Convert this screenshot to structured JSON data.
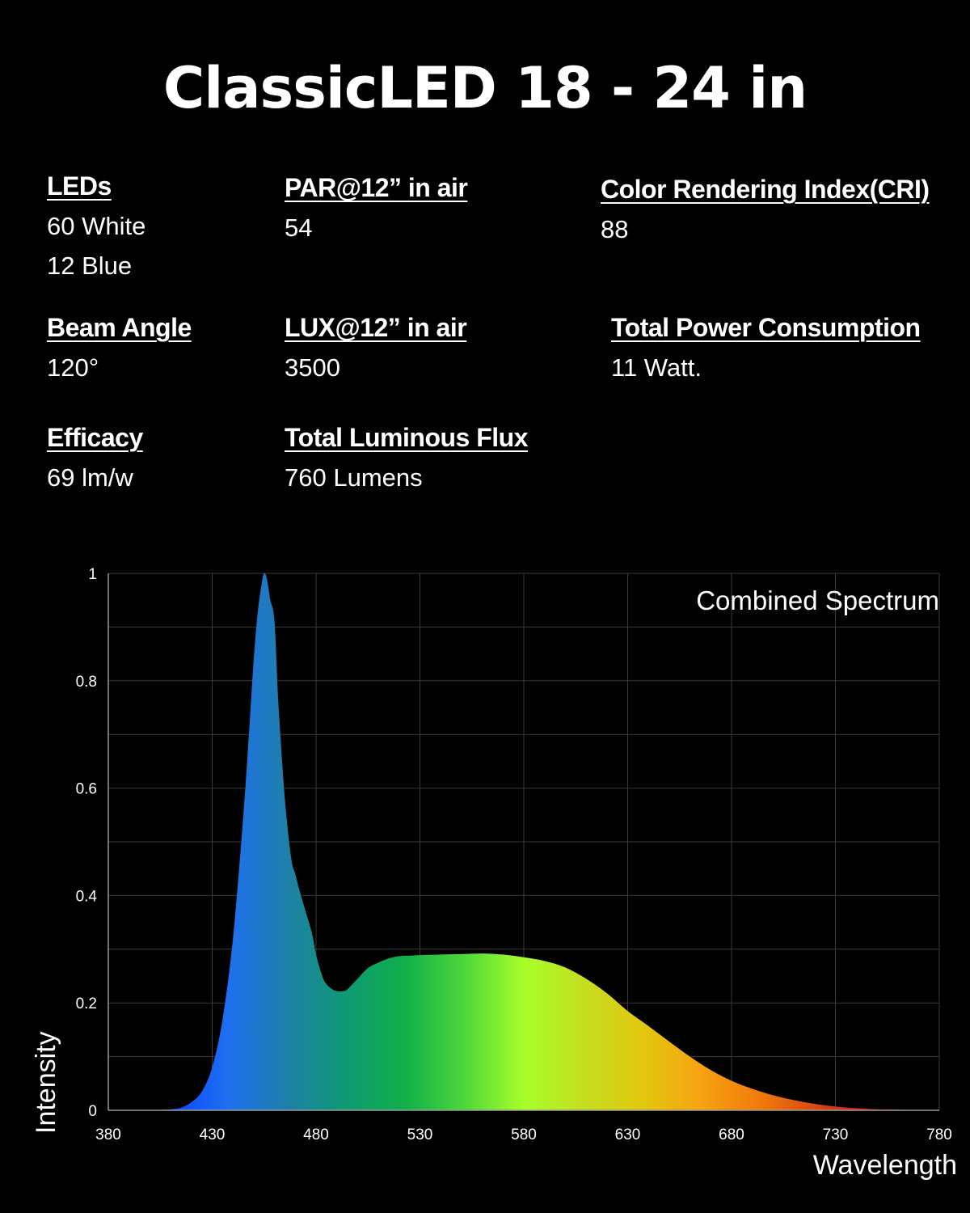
{
  "title": "ClassicLED 18 - 24 in",
  "specs": {
    "leds": {
      "label": "LEDs",
      "values": [
        "60 White",
        "12 Blue"
      ]
    },
    "par": {
      "label": "PAR@12” in air",
      "values": [
        "54"
      ]
    },
    "cri": {
      "label": "Color Rendering Index(CRI)",
      "values": [
        "88"
      ]
    },
    "beam": {
      "label": "Beam Angle",
      "values": [
        "120°"
      ]
    },
    "lux": {
      "label": "LUX@12” in air",
      "values": [
        "3500"
      ]
    },
    "power": {
      "label": "Total Power Consumption",
      "values": [
        "11 Watt."
      ]
    },
    "efficacy": {
      "label": "Efficacy",
      "values": [
        "69 lm/w"
      ]
    },
    "flux": {
      "label": "Total Luminous Flux",
      "values": [
        "760 Lumens"
      ]
    }
  },
  "chart_data": {
    "type": "area",
    "title": "",
    "annotation": "Combined Spectrum",
    "xlabel": "Wavelength",
    "ylabel": "Intensity",
    "xlim": [
      380,
      780
    ],
    "ylim": [
      0,
      1
    ],
    "x_ticks": [
      380,
      430,
      480,
      530,
      580,
      630,
      680,
      730,
      780
    ],
    "x_tick_labels": [
      "380",
      "430",
      "480",
      "530",
      "580",
      "630",
      "680",
      "730",
      "780"
    ],
    "y_ticks": [
      0,
      0.2,
      0.4,
      0.6,
      0.8,
      1
    ],
    "y_tick_labels": [
      "0",
      "0.2",
      "0.4",
      "0.6",
      "0.8",
      "1"
    ],
    "grid": true,
    "series": [
      {
        "x": [
          380,
          400,
          410,
          415,
          420,
          425,
          430,
          435,
          440,
          445,
          448,
          450,
          452,
          454,
          455,
          456,
          457,
          458,
          460,
          462,
          465,
          468,
          470,
          472,
          475,
          478,
          480,
          483,
          485,
          488,
          490,
          493,
          495,
          500,
          505,
          510,
          515,
          520,
          525,
          530,
          540,
          550,
          560,
          570,
          580,
          590,
          600,
          610,
          620,
          630,
          640,
          650,
          660,
          670,
          680,
          690,
          700,
          710,
          720,
          730,
          740,
          750,
          760,
          770,
          780
        ],
        "values": [
          0,
          0,
          0.002,
          0.005,
          0.015,
          0.035,
          0.08,
          0.17,
          0.32,
          0.55,
          0.72,
          0.84,
          0.93,
          0.985,
          1.0,
          0.995,
          0.975,
          0.95,
          0.91,
          0.75,
          0.58,
          0.47,
          0.44,
          0.41,
          0.37,
          0.33,
          0.29,
          0.25,
          0.235,
          0.225,
          0.222,
          0.222,
          0.225,
          0.245,
          0.265,
          0.275,
          0.283,
          0.287,
          0.288,
          0.289,
          0.29,
          0.291,
          0.292,
          0.29,
          0.285,
          0.278,
          0.266,
          0.245,
          0.218,
          0.185,
          0.157,
          0.128,
          0.1,
          0.075,
          0.055,
          0.04,
          0.028,
          0.019,
          0.012,
          0.007,
          0.004,
          0.002,
          0.001,
          0,
          0
        ]
      }
    ],
    "colors": {
      "gradient_stops": [
        "#1f2bff",
        "#0b44ff",
        "#1e6ff0",
        "#1e7fa9",
        "#0f9a73",
        "#10b04a",
        "#4ed73a",
        "#a8ff2a",
        "#c4de1f",
        "#e2c80f",
        "#f7a210",
        "#f07a0a",
        "#d84312",
        "#c01010",
        "#9e0808"
      ],
      "grid": "#3a3a3a",
      "axis": "#9a9a9a"
    }
  }
}
